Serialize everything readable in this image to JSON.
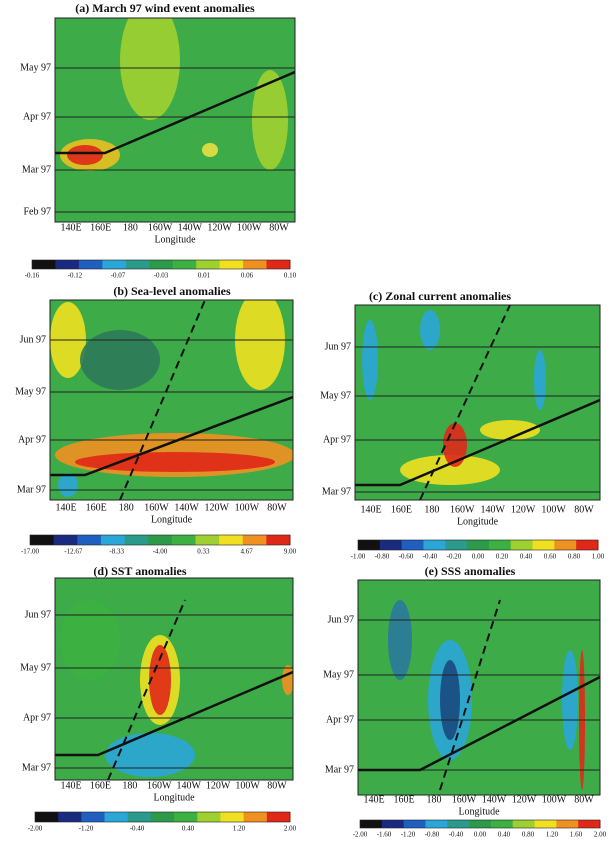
{
  "panels": [
    {
      "title": "(a) March 97 wind event anomalies",
      "yticks": [
        "May 97",
        "Apr 97",
        "Mar 97",
        "Feb 97"
      ],
      "xticks": [
        "140E",
        "160E",
        "180",
        "160W",
        "140W",
        "120W",
        "100W",
        "80W"
      ],
      "xlabel": "Longitude",
      "colorbar": [
        "-0.16",
        "-0.12",
        "-0.07",
        "-0.03",
        "0.01",
        "0.06",
        "0.10"
      ]
    },
    {
      "title": "(b) Sea-level anomalies",
      "yticks": [
        "Jun 97",
        "May 97",
        "Apr 97",
        "Mar 97"
      ],
      "xticks": [
        "140E",
        "160E",
        "180",
        "160W",
        "140W",
        "120W",
        "100W",
        "80W"
      ],
      "xlabel": "Longitude",
      "colorbar": [
        "-17.00",
        "-12.67",
        "-8.33",
        "-4.00",
        "0.33",
        "4.67",
        "9.00"
      ]
    },
    {
      "title": "(c) Zonal current anomalies",
      "yticks": [
        "Jun 97",
        "May 97",
        "Apr 97",
        "Mar 97"
      ],
      "xticks": [
        "140E",
        "160E",
        "180",
        "160W",
        "140W",
        "120W",
        "100W",
        "80W"
      ],
      "xlabel": "Longitude",
      "colorbar": [
        "-1.00",
        "-0.80",
        "-0.60",
        "-0.40",
        "-0.20",
        "0.00",
        "0.20",
        "0.40",
        "0.60",
        "0.80",
        "1.00"
      ]
    },
    {
      "title": "(d) SST anomalies",
      "yticks": [
        "Jun 97",
        "May 97",
        "Apr 97",
        "Mar 97"
      ],
      "xticks": [
        "140E",
        "160E",
        "180",
        "160W",
        "140W",
        "120W",
        "100W",
        "80W"
      ],
      "xlabel": "Longitude",
      "colorbar": [
        "-2.00",
        "-1.20",
        "-0.40",
        "0.40",
        "1.20",
        "2.00"
      ]
    },
    {
      "title": "(e) SSS anomalies",
      "yticks": [
        "Jun 97",
        "May 97",
        "Apr 97",
        "Mar 97"
      ],
      "xticks": [
        "140E",
        "160E",
        "180",
        "160W",
        "140W",
        "120W",
        "100W",
        "80W"
      ],
      "xlabel": "Longitude",
      "colorbar": [
        "-2.00",
        "-1.60",
        "-1.20",
        "-0.80",
        "-0.40",
        "0.00",
        "0.40",
        "0.80",
        "1.20",
        "1.60",
        "2.00"
      ]
    }
  ]
}
